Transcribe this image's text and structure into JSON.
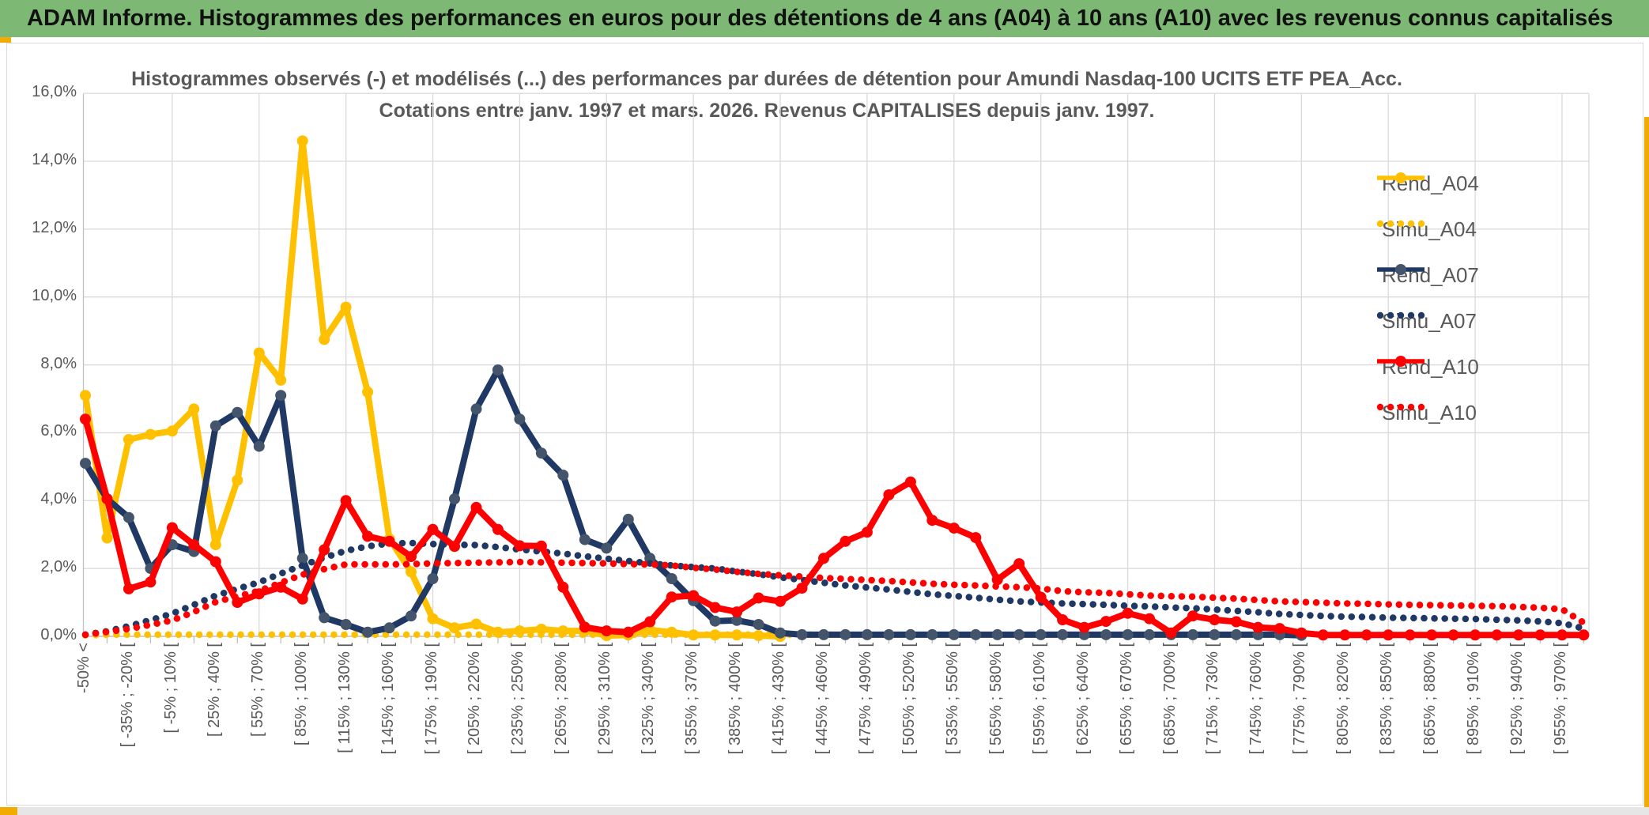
{
  "header": {
    "title": "ADAM Informe. Histogrammes des performances en euros pour des détentions de 4 ans (A04) à 10 ans (A10) avec les revenus connus capitalisés"
  },
  "chart_data": {
    "type": "line",
    "title_line1": "Histogrammes observés (-) et modélisés (...) des performances par durées de détention pour Amundi Nasdaq-100 UCITS ETF PEA_Acc.",
    "title_line2": "Cotations entre janv. 1997 et mars. 2026. Revenus CAPITALISES depuis janv. 1997.",
    "ylim": [
      0,
      16
    ],
    "ytick_step": 2,
    "y_tick_labels": [
      "0,0%",
      "2,0%",
      "4,0%",
      "6,0%",
      "8,0%",
      "10,0%",
      "12,0%",
      "14,0%",
      "16,0%"
    ],
    "grid": true,
    "legend_position": "right",
    "n_bins": 70,
    "x_labels": [
      "-50% <",
      "[ -35% ; -20% [",
      "[ -5% ; 10% [",
      "[ 25% ; 40% [",
      "[ 55% ; 70% [",
      "[ 85% ; 100% [",
      "[ 115% ; 130% [",
      "[ 145% ; 160% [",
      "[ 175% ; 190% [",
      "[ 205% ; 220% [",
      "[ 235% ; 250% [",
      "[ 265% ; 280% [",
      "[ 295% ; 310% [",
      "[ 325% ; 340% [",
      "[ 355% ; 370% [",
      "[ 385% ; 400% [",
      "[ 415% ; 430% [",
      "[ 445% ; 460% [",
      "[ 475% ; 490% [",
      "[ 505% ; 520% [",
      "[ 535% ; 550% [",
      "[ 565% ; 580% [",
      "[ 595% ; 610% [",
      "[ 625% ; 640% [",
      "[ 655% ; 670% [",
      "[ 685% ; 700% [",
      "[ 715% ; 730% [",
      "[ 745% ; 760% [",
      "[ 775% ; 790% [",
      "[ 805% ; 820% [",
      "[ 835% ; 850% [",
      "[ 865% ; 880% [",
      "[ 895% ; 910% [",
      "[ 925% ; 940% [",
      "[ 955% ; 970% ["
    ],
    "series": [
      {
        "name": "Rend_A04",
        "color": "#FFC000",
        "style": "solid",
        "marker": true,
        "marker_color": "#FFC000",
        "values": [
          7.1,
          2.9,
          5.8,
          5.95,
          6.05,
          6.7,
          2.7,
          4.6,
          8.35,
          7.55,
          14.6,
          8.75,
          9.7,
          7.2,
          2.87,
          1.9,
          0.52,
          0.25,
          0.36,
          0.12,
          0.16,
          0.21,
          0.16,
          0.16,
          0.02,
          0.04,
          0.19,
          0.12,
          0.04,
          0.04,
          0.04,
          0.02,
          0,
          null,
          null,
          null,
          null,
          null,
          null,
          null,
          null,
          null,
          null,
          null,
          null,
          null,
          null,
          null,
          null,
          null,
          null,
          null,
          null,
          null,
          null,
          null,
          null,
          null,
          null,
          null,
          null,
          null,
          null,
          null,
          null,
          null,
          null,
          null,
          null,
          null
        ]
      },
      {
        "name": "Simu_A04",
        "color": "#FFC000",
        "style": "dotted",
        "marker": false,
        "values": [
          0.03,
          0.05,
          0.05,
          0.05,
          0.05,
          0.05,
          0.05,
          0.05,
          0.05,
          0.05,
          0.05,
          0.05,
          0.05,
          0.05,
          0.05,
          0.05,
          0.05,
          0.05,
          0.05,
          0.05,
          0.05,
          0.05,
          0.05,
          0.05,
          0.05,
          0.05,
          0.05,
          0.05,
          0.05,
          0.05,
          0.05,
          0.05,
          0.05,
          0.05,
          0.05,
          0.05,
          null,
          null,
          null,
          null,
          null,
          null,
          null,
          null,
          null,
          null,
          null,
          null,
          null,
          null,
          null,
          null,
          null,
          null,
          null,
          null,
          null,
          null,
          null,
          null,
          null,
          null,
          null,
          null,
          null,
          null,
          null,
          null,
          null,
          null
        ]
      },
      {
        "name": "Rend_A07",
        "color": "#1f3864",
        "style": "solid",
        "marker": true,
        "marker_color": "#44546a",
        "values": [
          5.1,
          4.05,
          3.5,
          2.0,
          2.7,
          2.5,
          6.2,
          6.6,
          5.6,
          7.1,
          2.3,
          0.55,
          0.35,
          0.12,
          0.25,
          0.6,
          1.7,
          4.05,
          6.7,
          7.85,
          6.4,
          5.4,
          4.75,
          2.85,
          2.6,
          3.45,
          2.3,
          1.7,
          1.05,
          0.45,
          0.47,
          0.35,
          0.1,
          0.05,
          0.05,
          0.05,
          0.05,
          0.05,
          0.05,
          0.05,
          0.05,
          0.05,
          0.05,
          0.05,
          0.05,
          0.05,
          0.05,
          0.05,
          0.05,
          0.05,
          0.05,
          0.05,
          0.05,
          0.05,
          0.05,
          0.05,
          0.03,
          null,
          null,
          null,
          null,
          null,
          null,
          null,
          null,
          null,
          null,
          null,
          null,
          null
        ]
      },
      {
        "name": "Simu_A07",
        "color": "#1f3864",
        "style": "dotted",
        "marker": false,
        "values": [
          0.05,
          0.15,
          0.3,
          0.48,
          0.67,
          0.93,
          1.2,
          1.4,
          1.59,
          1.85,
          2.09,
          2.32,
          2.52,
          2.65,
          2.74,
          2.75,
          2.72,
          2.7,
          2.69,
          2.63,
          2.56,
          2.5,
          2.44,
          2.36,
          2.29,
          2.22,
          2.15,
          2.09,
          2.04,
          2.0,
          1.91,
          1.83,
          1.74,
          1.66,
          1.58,
          1.5,
          1.44,
          1.38,
          1.31,
          1.24,
          1.19,
          1.14,
          1.08,
          1.03,
          1.0,
          0.97,
          0.95,
          0.93,
          0.9,
          0.88,
          0.85,
          0.83,
          0.79,
          0.75,
          0.71,
          0.66,
          0.63,
          0.6,
          0.58,
          0.57,
          0.55,
          0.54,
          0.53,
          0.52,
          0.51,
          0.49,
          0.47,
          0.44,
          0.39,
          0.23
        ]
      },
      {
        "name": "Rend_A10",
        "color": "#ff0000",
        "style": "solid",
        "marker": true,
        "marker_color": "#ff0000",
        "values": [
          6.4,
          4.05,
          1.4,
          1.6,
          3.2,
          2.7,
          2.2,
          1.0,
          1.25,
          1.45,
          1.1,
          2.55,
          4.0,
          2.95,
          2.8,
          2.35,
          3.15,
          2.65,
          3.8,
          3.15,
          2.67,
          2.66,
          1.45,
          0.27,
          0.16,
          0.12,
          0.43,
          1.16,
          1.2,
          0.85,
          0.72,
          1.13,
          1.03,
          1.42,
          2.3,
          2.8,
          3.07,
          4.17,
          4.55,
          3.42,
          3.19,
          2.91,
          1.67,
          2.14,
          1.15,
          0.49,
          0.26,
          0.44,
          0.68,
          0.52,
          0.1,
          0.6,
          0.49,
          0.43,
          0.26,
          0.23,
          0.1,
          0.04,
          0.04,
          0.04,
          0.04,
          0.04,
          0.04,
          0.04,
          0.04,
          0.04,
          0.04,
          0.04,
          0.04,
          0.04
        ]
      },
      {
        "name": "Simu_A10",
        "color": "#ff0000",
        "style": "dotted",
        "marker": false,
        "values": [
          0.05,
          0.13,
          0.22,
          0.34,
          0.47,
          0.72,
          1.01,
          1.18,
          1.34,
          1.58,
          1.82,
          1.98,
          2.12,
          2.12,
          2.12,
          2.13,
          2.15,
          2.16,
          2.17,
          2.18,
          2.19,
          2.18,
          2.17,
          2.16,
          2.15,
          2.13,
          2.12,
          2.09,
          2.02,
          1.97,
          1.9,
          1.84,
          1.8,
          1.76,
          1.72,
          1.69,
          1.66,
          1.63,
          1.59,
          1.55,
          1.52,
          1.5,
          1.47,
          1.45,
          1.41,
          1.33,
          1.3,
          1.28,
          1.24,
          1.2,
          1.18,
          1.17,
          1.14,
          1.11,
          1.07,
          1.03,
          1.01,
          0.99,
          0.97,
          0.96,
          0.94,
          0.93,
          0.92,
          0.91,
          0.9,
          0.89,
          0.87,
          0.84,
          0.8,
          0.4
        ]
      }
    ]
  },
  "frame": {
    "header_bg": "#7db974",
    "accent_gold": "#f2ab00",
    "grid_color": "#d9d9d9",
    "axis_color": "#bfbfbf",
    "text_color": "#595959"
  }
}
